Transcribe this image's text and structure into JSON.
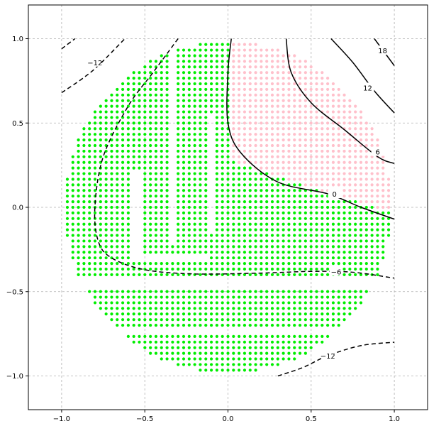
{
  "chart_data": {
    "type": "scatter",
    "title": "",
    "xlabel": "",
    "ylabel": "",
    "xlim": [
      -1.2,
      1.2
    ],
    "ylim": [
      -1.2,
      1.2
    ],
    "xticks": [
      -1.0,
      -0.5,
      0.0,
      0.5,
      1.0
    ],
    "yticks": [
      -1.0,
      -0.5,
      0.0,
      0.5,
      1.0
    ],
    "xtick_labels": [
      "−1.0",
      "−0.5",
      "0.0",
      "0.5",
      "1.0"
    ],
    "ytick_labels": [
      "−1.0",
      "−0.5",
      "0.0",
      "0.5",
      "1.0"
    ],
    "grid": true,
    "grid_spacing": 0.0333,
    "colors": {
      "class_green": "#00ee00",
      "class_pink": "#ffc0cb",
      "contour": "#000000",
      "grid": "#b0b0b0"
    },
    "point_classes": [
      {
        "class": "green"
      },
      {
        "class": "pink"
      }
    ],
    "contours": [
      {
        "level": "−12",
        "style": "dashed",
        "points": [
          [
            -1.0,
            0.68
          ],
          [
            -0.88,
            0.76
          ],
          [
            -0.78,
            0.84
          ],
          [
            -0.62,
            1.0
          ]
        ],
        "label_pos": [
          -0.8,
          0.86
        ]
      },
      {
        "level": "−12",
        "style": "dashed",
        "points": [
          [
            -1.0,
            0.94
          ],
          [
            -0.92,
            1.0
          ]
        ],
        "label_pos": null
      },
      {
        "level": "−6",
        "style": "dashed",
        "points": [
          [
            -0.3,
            1.0
          ],
          [
            -0.45,
            0.8
          ],
          [
            -0.6,
            0.6
          ],
          [
            -0.75,
            0.3
          ],
          [
            -0.8,
            0.0
          ],
          [
            -0.78,
            -0.2
          ],
          [
            -0.7,
            -0.3
          ],
          [
            -0.5,
            -0.37
          ],
          [
            -0.2,
            -0.395
          ],
          [
            0.2,
            -0.39
          ],
          [
            0.5,
            -0.38
          ],
          [
            0.75,
            -0.385
          ],
          [
            1.0,
            -0.42
          ]
        ],
        "label_pos": [
          0.65,
          -0.38
        ]
      },
      {
        "level": "−12",
        "style": "dashed",
        "points": [
          [
            0.3,
            -1.0
          ],
          [
            0.45,
            -0.95
          ],
          [
            0.6,
            -0.88
          ],
          [
            0.8,
            -0.82
          ],
          [
            1.0,
            -0.8
          ]
        ],
        "label_pos": [
          0.6,
          -0.88
        ]
      },
      {
        "level": "0",
        "style": "solid",
        "points": [
          [
            0.02,
            1.0
          ],
          [
            0.0,
            0.8
          ],
          [
            0.0,
            0.5
          ],
          [
            0.08,
            0.32
          ],
          [
            0.3,
            0.15
          ],
          [
            0.6,
            0.08
          ],
          [
            0.8,
            0.0
          ],
          [
            1.0,
            -0.07
          ]
        ],
        "label_pos": [
          0.64,
          0.08
        ]
      },
      {
        "level": "6",
        "style": "solid",
        "points": [
          [
            0.35,
            1.0
          ],
          [
            0.38,
            0.8
          ],
          [
            0.5,
            0.62
          ],
          [
            0.7,
            0.46
          ],
          [
            0.9,
            0.3
          ],
          [
            1.0,
            0.26
          ]
        ],
        "label_pos": [
          0.9,
          0.33
        ]
      },
      {
        "level": "12",
        "style": "solid",
        "points": [
          [
            0.62,
            1.0
          ],
          [
            0.75,
            0.86
          ],
          [
            0.88,
            0.69
          ],
          [
            1.0,
            0.56
          ]
        ],
        "label_pos": [
          0.84,
          0.71
        ]
      },
      {
        "level": "18",
        "style": "solid",
        "points": [
          [
            0.88,
            1.0
          ],
          [
            1.0,
            0.84
          ]
        ],
        "label_pos": [
          0.93,
          0.93
        ]
      }
    ]
  }
}
